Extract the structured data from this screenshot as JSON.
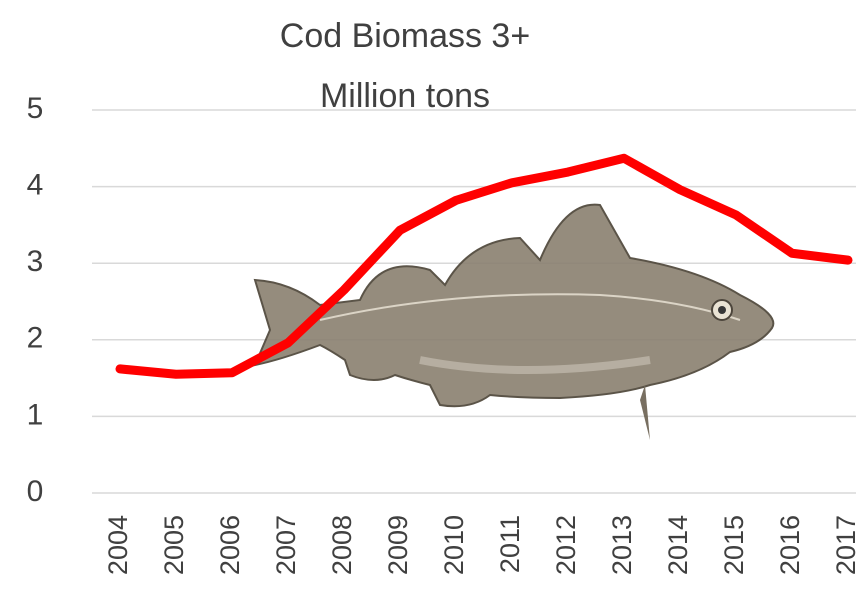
{
  "chart_data": {
    "type": "line",
    "title": "Cod Biomass 3+",
    "subtitle": "Million tons",
    "categories": [
      "2004",
      "2005",
      "2006",
      "2007",
      "2008",
      "2009",
      "2010",
      "2011",
      "2012",
      "2013",
      "2014",
      "2015",
      "2016",
      "2017"
    ],
    "series": [
      {
        "name": "Cod Biomass 3+",
        "color": "#ff0000",
        "values": [
          1.62,
          1.55,
          1.57,
          1.96,
          2.65,
          3.43,
          3.82,
          4.05,
          4.19,
          4.37,
          3.96,
          3.63,
          3.13,
          3.04
        ]
      }
    ],
    "ylim": [
      0,
      5
    ],
    "yticks": [
      0,
      1,
      2,
      3,
      4,
      5
    ],
    "grid": true
  }
}
